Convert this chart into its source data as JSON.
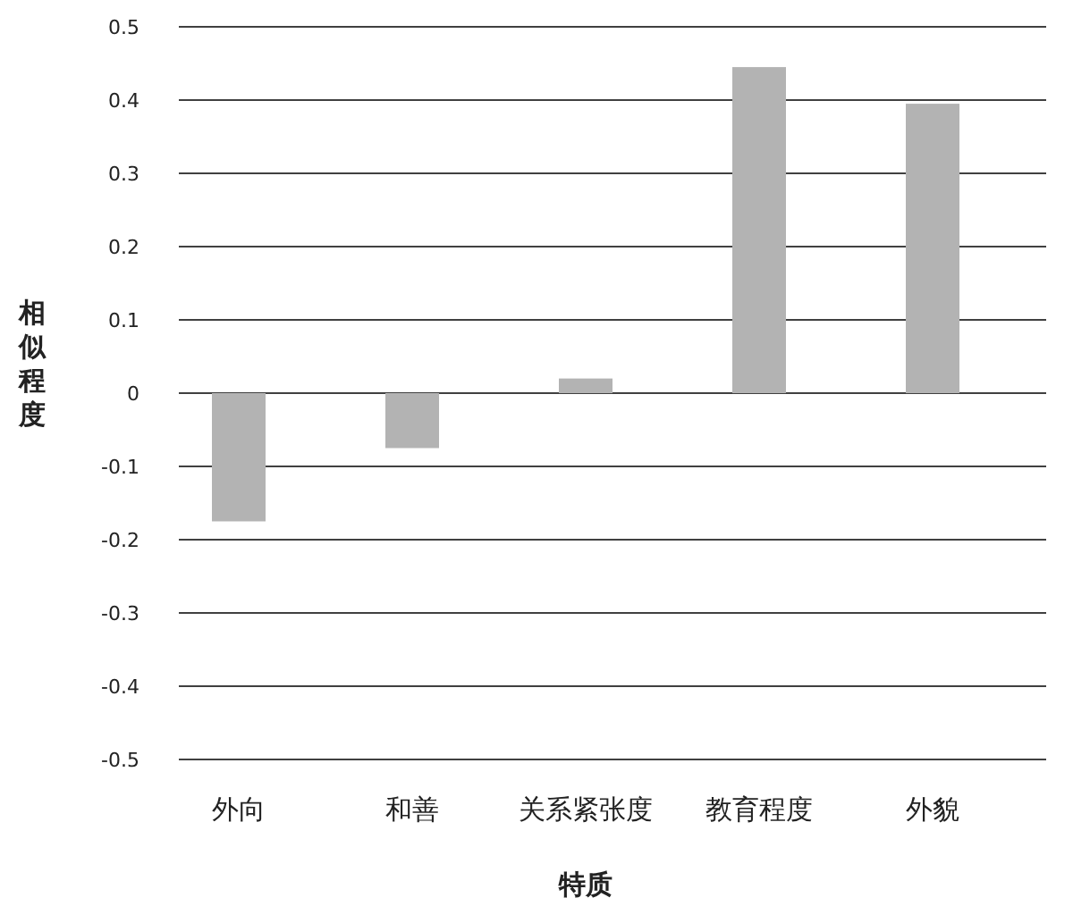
{
  "chart_data": {
    "type": "bar",
    "xlabel": "特质",
    "ylabel": "相似程度",
    "categories": [
      "外向",
      "和善",
      "关系紧张度",
      "教育程度",
      "外貌"
    ],
    "values": [
      -0.175,
      -0.075,
      0.02,
      0.445,
      0.395
    ],
    "color": "#b3b3b3",
    "ylim": [
      -0.5,
      0.5
    ],
    "yticks": [
      -0.5,
      -0.4,
      -0.3,
      -0.2,
      -0.1,
      0,
      0.1,
      0.2,
      0.3,
      0.4,
      0.5
    ],
    "grid": "y"
  }
}
